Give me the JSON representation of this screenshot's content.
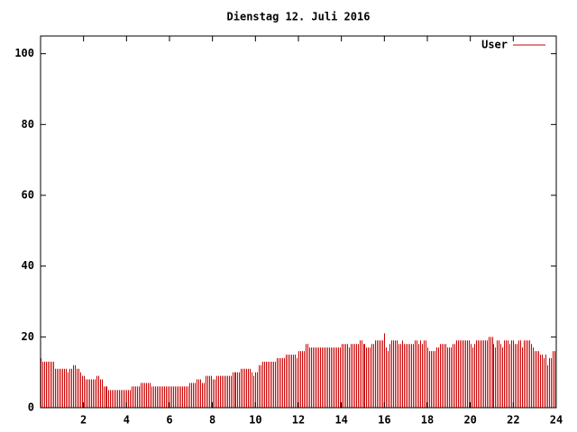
{
  "chart_data": {
    "type": "impulses",
    "title": "Dienstag 12. Juli 2016",
    "xlim": [
      0,
      24
    ],
    "xticks": [
      2,
      4,
      6,
      8,
      10,
      12,
      14,
      16,
      18,
      20,
      22,
      24
    ],
    "ylim": [
      0,
      105
    ],
    "yticks": [
      0,
      20,
      40,
      60,
      80,
      100
    ],
    "legend": "top-right",
    "series": [
      {
        "name": "User",
        "color": "#cc0000",
        "x": [
          0,
          0.083,
          0.167,
          0.25,
          0.333,
          0.417,
          0.5,
          0.583,
          0.667,
          0.75,
          0.833,
          0.917,
          1,
          1.083,
          1.167,
          1.25,
          1.333,
          1.417,
          1.5,
          1.583,
          1.667,
          1.75,
          1.833,
          1.917,
          2,
          2.083,
          2.167,
          2.25,
          2.333,
          2.417,
          2.5,
          2.583,
          2.667,
          2.75,
          2.833,
          2.917,
          3,
          3.083,
          3.167,
          3.25,
          3.333,
          3.417,
          3.5,
          3.583,
          3.667,
          3.75,
          3.833,
          3.917,
          4,
          4.083,
          4.167,
          4.25,
          4.333,
          4.417,
          4.5,
          4.583,
          4.667,
          4.75,
          4.833,
          4.917,
          5,
          5.083,
          5.167,
          5.25,
          5.333,
          5.417,
          5.5,
          5.583,
          5.667,
          5.75,
          5.833,
          5.917,
          6,
          6.083,
          6.167,
          6.25,
          6.333,
          6.417,
          6.5,
          6.583,
          6.667,
          6.75,
          6.833,
          6.917,
          7,
          7.083,
          7.167,
          7.25,
          7.333,
          7.417,
          7.5,
          7.583,
          7.667,
          7.75,
          7.833,
          7.917,
          8,
          8.083,
          8.167,
          8.25,
          8.333,
          8.417,
          8.5,
          8.583,
          8.667,
          8.75,
          8.833,
          8.917,
          9,
          9.083,
          9.167,
          9.25,
          9.333,
          9.417,
          9.5,
          9.583,
          9.667,
          9.75,
          9.833,
          9.917,
          10,
          10.083,
          10.167,
          10.25,
          10.333,
          10.417,
          10.5,
          10.583,
          10.667,
          10.75,
          10.833,
          10.917,
          11,
          11.083,
          11.167,
          11.25,
          11.333,
          11.417,
          11.5,
          11.583,
          11.667,
          11.75,
          11.833,
          11.917,
          12,
          12.083,
          12.167,
          12.25,
          12.333,
          12.417,
          12.5,
          12.583,
          12.667,
          12.75,
          12.833,
          12.917,
          13,
          13.083,
          13.167,
          13.25,
          13.333,
          13.417,
          13.5,
          13.583,
          13.667,
          13.75,
          13.833,
          13.917,
          14,
          14.083,
          14.167,
          14.25,
          14.333,
          14.417,
          14.5,
          14.583,
          14.667,
          14.75,
          14.833,
          14.917,
          15,
          15.083,
          15.167,
          15.25,
          15.333,
          15.417,
          15.5,
          15.583,
          15.667,
          15.75,
          15.833,
          15.917,
          16,
          16.083,
          16.167,
          16.25,
          16.333,
          16.417,
          16.5,
          16.583,
          16.667,
          16.75,
          16.833,
          16.917,
          17,
          17.083,
          17.167,
          17.25,
          17.333,
          17.417,
          17.5,
          17.583,
          17.667,
          17.75,
          17.833,
          17.917,
          18,
          18.083,
          18.167,
          18.25,
          18.333,
          18.417,
          18.5,
          18.583,
          18.667,
          18.75,
          18.833,
          18.917,
          19,
          19.083,
          19.167,
          19.25,
          19.333,
          19.417,
          19.5,
          19.583,
          19.667,
          19.75,
          19.833,
          19.917,
          20,
          20.083,
          20.167,
          20.25,
          20.333,
          20.417,
          20.5,
          20.583,
          20.667,
          20.75,
          20.833,
          20.917,
          21,
          21.083,
          21.167,
          21.25,
          21.333,
          21.417,
          21.5,
          21.583,
          21.667,
          21.75,
          21.833,
          21.917,
          22,
          22.083,
          22.167,
          22.25,
          22.333,
          22.417,
          22.5,
          22.583,
          22.667,
          22.75,
          22.833,
          22.917,
          23,
          23.083,
          23.167,
          23.25,
          23.333,
          23.417,
          23.5,
          23.583,
          23.667,
          23.75,
          23.833,
          23.917
        ],
        "values": [
          14,
          13,
          13,
          13,
          13,
          13,
          13,
          13,
          11,
          11,
          11,
          11,
          11,
          11,
          11,
          10,
          11,
          11,
          12,
          12,
          11,
          11,
          10,
          9,
          9,
          8,
          8,
          8,
          8,
          8,
          8,
          9,
          9,
          8,
          8,
          6,
          6,
          6,
          5,
          5,
          5,
          5,
          5,
          5,
          5,
          5,
          5,
          5,
          5,
          5,
          5,
          6,
          6,
          6,
          6,
          6,
          7,
          7,
          7,
          7,
          7,
          7,
          6,
          6,
          6,
          6,
          6,
          6,
          6,
          6,
          6,
          6,
          6,
          6,
          6,
          6,
          6,
          6,
          6,
          6,
          6,
          6,
          6,
          7,
          7,
          7,
          7,
          8,
          8,
          8,
          7,
          7,
          9,
          9,
          9,
          9,
          8,
          8,
          9,
          9,
          9,
          9,
          9,
          9,
          9,
          9,
          9,
          10,
          10,
          10,
          10,
          10,
          11,
          11,
          11,
          11,
          11,
          11,
          10,
          9,
          10,
          10,
          12,
          12,
          13,
          13,
          13,
          13,
          13,
          13,
          13,
          13,
          14,
          14,
          14,
          14,
          14,
          15,
          15,
          15,
          15,
          15,
          15,
          14,
          16,
          16,
          16,
          16,
          18,
          18,
          17,
          17,
          17,
          17,
          17,
          17,
          17,
          17,
          17,
          17,
          17,
          17,
          17,
          17,
          17,
          17,
          17,
          17,
          18,
          18,
          18,
          18,
          17,
          18,
          18,
          18,
          18,
          18,
          19,
          19,
          18,
          18,
          17,
          17,
          17,
          18,
          18,
          19,
          19,
          19,
          19,
          19,
          21,
          17,
          16,
          18,
          19,
          19,
          19,
          19,
          18,
          18,
          19,
          18,
          18,
          18,
          18,
          18,
          18,
          19,
          19,
          18,
          19,
          18,
          19,
          19,
          17,
          16,
          16,
          16,
          16,
          17,
          17,
          18,
          18,
          18,
          18,
          17,
          17,
          17,
          18,
          18,
          19,
          19,
          19,
          19,
          19,
          19,
          19,
          19,
          18,
          17,
          18,
          19,
          19,
          19,
          19,
          19,
          19,
          19,
          20,
          20,
          20,
          18,
          17,
          19,
          19,
          18,
          17,
          19,
          19,
          19,
          18,
          19,
          19,
          18,
          18,
          19,
          19,
          17,
          19,
          19,
          19,
          19,
          18,
          17,
          16,
          16,
          16,
          15,
          15,
          14,
          15,
          12,
          14,
          14,
          16,
          16
        ]
      }
    ]
  }
}
